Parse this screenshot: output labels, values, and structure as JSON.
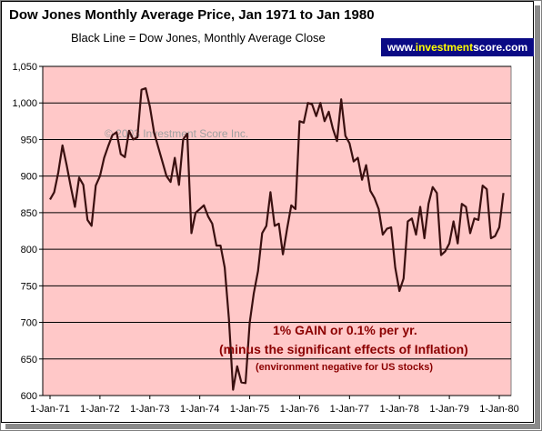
{
  "header": {
    "title": "Dow Jones Monthly Average Price, Jan 1971 to Jan 1980",
    "subtitle": "Black Line = Dow Jones, Monthly Average Close"
  },
  "brand": {
    "prefix": "www.",
    "highlight": "investment",
    "suffix": "score.com"
  },
  "watermark": "© 2003 Investment Score Inc.",
  "annotations": {
    "line1": "1% GAIN or 0.1% per yr.",
    "line2": "(minus the significant effects of Inflation)",
    "line3": "(environment negative for US stocks)"
  },
  "colors": {
    "plot_background": "#ffc8c8",
    "line": "#3a1010",
    "annotation": "#8b0000",
    "brand_background": "#0a0a84",
    "brand_highlight": "#ffff00"
  },
  "chart_data": {
    "type": "line",
    "title": "Dow Jones Monthly Average Price, Jan 1971 to Jan 1980",
    "subtitle": "Black Line = Dow Jones, Monthly Average Close",
    "xlabel": "",
    "ylabel": "",
    "ylim": [
      600,
      1050
    ],
    "yticks": [
      "1,050",
      "1,000",
      "950",
      "900",
      "850",
      "800",
      "750",
      "700",
      "650",
      "600"
    ],
    "ytick_values": [
      1050,
      1000,
      950,
      900,
      850,
      800,
      750,
      700,
      650,
      600
    ],
    "xticks": [
      "1-Jan-71",
      "1-Jan-72",
      "1-Jan-73",
      "1-Jan-74",
      "1-Jan-75",
      "1-Jan-76",
      "1-Jan-77",
      "1-Jan-78",
      "1-Jan-79",
      "1-Jan-80"
    ],
    "grid": true,
    "legend": "none",
    "series": [
      {
        "values": [
          868,
          878,
          905,
          942,
          915,
          885,
          858,
          898,
          888,
          840,
          832,
          887,
          900,
          925,
          941,
          956,
          960,
          930,
          926,
          962,
          950,
          953,
          1018,
          1020,
          995,
          960,
          940,
          920,
          900,
          892,
          925,
          888,
          950,
          958,
          822,
          850,
          855,
          860,
          845,
          835,
          805,
          805,
          775,
          705,
          608,
          640,
          618,
          617,
          700,
          740,
          770,
          822,
          832,
          878,
          832,
          835,
          793,
          828,
          860,
          855,
          975,
          973,
          1000,
          998,
          982,
          1000,
          975,
          988,
          965,
          948,
          1005,
          955,
          945,
          920,
          925,
          895,
          915,
          880,
          870,
          855,
          820,
          828,
          830,
          775,
          743,
          760,
          838,
          842,
          820,
          858,
          815,
          862,
          885,
          877,
          792,
          797,
          808,
          838,
          808,
          862,
          858,
          822,
          842,
          840,
          887,
          882,
          815,
          818,
          830,
          877
        ]
      }
    ]
  }
}
